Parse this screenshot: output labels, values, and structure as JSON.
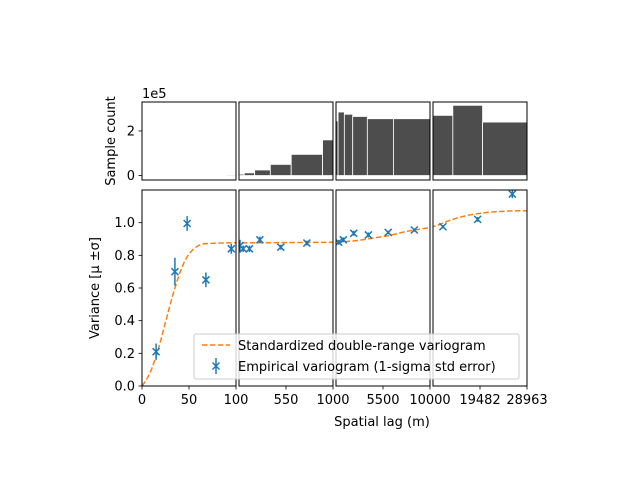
{
  "chart_data": {
    "type": "scatter",
    "xlabel": "Spatial lag (m)",
    "ylabel": "Variance [$\\mu$ $\\pm \\sigma$]",
    "ylabel_display": "Variance [μ ±σ]",
    "ylim": [
      0,
      1.2
    ],
    "yticks": [
      0.0,
      0.2,
      0.4,
      0.6,
      0.8,
      1.0
    ],
    "ytick_labels": [
      "0.0",
      "0.2",
      "0.4",
      "0.6",
      "0.8",
      "1.0"
    ],
    "panels": [
      {
        "xlim": [
          0,
          100
        ],
        "xticks": [
          0,
          50
        ],
        "xtick_labels": [
          "0",
          "50"
        ]
      },
      {
        "xlim": [
          100,
          1000
        ],
        "xticks": [
          100,
          550
        ],
        "xtick_labels": [
          "100",
          "550"
        ]
      },
      {
        "xlim": [
          1000,
          10000
        ],
        "xticks": [
          1000,
          5500
        ],
        "xtick_labels": [
          "1000",
          "5500"
        ]
      },
      {
        "xlim": [
          10000,
          28963
        ],
        "xticks": [
          10000,
          19482,
          28963
        ],
        "xtick_labels": [
          "10000",
          "19482",
          "28963"
        ]
      }
    ],
    "histogram": {
      "ylabel": "Sample count",
      "multiplier": "1e5",
      "ylim": [
        -0.2,
        3.3
      ],
      "yticks": [
        0,
        2
      ],
      "ytick_labels": [
        "0",
        "2"
      ],
      "color": "#4d4d4d",
      "bins": [
        [
          0,
          10,
          0.0
        ],
        [
          10,
          20,
          0.0
        ],
        [
          20,
          30,
          0.0
        ],
        [
          30,
          40,
          0.0
        ],
        [
          40,
          50,
          0.0
        ],
        [
          50,
          60,
          0.0
        ],
        [
          60,
          70,
          0.0
        ],
        [
          70,
          80,
          0.0
        ],
        [
          80,
          90,
          0.02
        ],
        [
          90,
          100,
          0.04
        ],
        [
          100,
          150,
          0.06
        ],
        [
          150,
          250,
          0.12
        ],
        [
          250,
          400,
          0.25
        ],
        [
          400,
          600,
          0.5
        ],
        [
          600,
          900,
          0.95
        ],
        [
          900,
          1000,
          1.6
        ],
        [
          1000,
          1200,
          2.45
        ],
        [
          1200,
          1800,
          2.85
        ],
        [
          1800,
          2600,
          2.75
        ],
        [
          2600,
          4000,
          2.65
        ],
        [
          4000,
          6500,
          2.55
        ],
        [
          6500,
          10000,
          2.55
        ],
        [
          10000,
          14000,
          2.7
        ],
        [
          14000,
          20000,
          3.15
        ],
        [
          20000,
          28963,
          2.4
        ]
      ]
    },
    "series": [
      {
        "name": "Empirical variogram (1-sigma std error)",
        "color": "#1f77b4",
        "marker": "x",
        "x": [
          15,
          35,
          48,
          68,
          95,
          110,
          140,
          200,
          300,
          500,
          750,
          1250,
          1700,
          2700,
          4100,
          6000,
          8500,
          12000,
          19000,
          26000
        ],
        "y": [
          0.21,
          0.7,
          0.995,
          0.65,
          0.84,
          0.86,
          0.84,
          0.84,
          0.895,
          0.85,
          0.875,
          0.88,
          0.895,
          0.935,
          0.925,
          0.94,
          0.955,
          0.975,
          1.02,
          1.175
        ],
        "yerr": [
          0.05,
          0.085,
          0.045,
          0.045,
          0.03,
          0.035,
          0.02,
          0.02,
          0.02,
          0.015,
          0.015,
          0.015,
          0.015,
          0.015,
          0.015,
          0.01,
          0.01,
          0.01,
          0.015,
          0.025
        ]
      },
      {
        "name": "Standardized double-range variogram",
        "color": "#ff7f0e",
        "style": "dashed",
        "x": [
          0,
          5,
          10,
          15,
          20,
          25,
          30,
          35,
          40,
          45,
          50,
          55,
          60,
          65,
          70,
          80,
          90,
          100,
          1000,
          2000,
          3000,
          4000,
          5000,
          6000,
          7000,
          8000,
          9000,
          10000,
          11000,
          13000,
          15000,
          17000,
          19000,
          21000,
          23000,
          25000,
          27000,
          28963
        ],
        "y": [
          0.0,
          0.04,
          0.1,
          0.18,
          0.28,
          0.39,
          0.5,
          0.6,
          0.69,
          0.76,
          0.81,
          0.84,
          0.86,
          0.87,
          0.872,
          0.875,
          0.876,
          0.876,
          0.88,
          0.885,
          0.89,
          0.9,
          0.91,
          0.92,
          0.935,
          0.95,
          0.96,
          0.97,
          0.985,
          1.01,
          1.03,
          1.045,
          1.055,
          1.063,
          1.068,
          1.071,
          1.073,
          1.073
        ]
      }
    ],
    "legend": {
      "location": "lower right",
      "entries": [
        "Standardized double-range variogram",
        "Empirical variogram (1-sigma std error)"
      ]
    }
  }
}
